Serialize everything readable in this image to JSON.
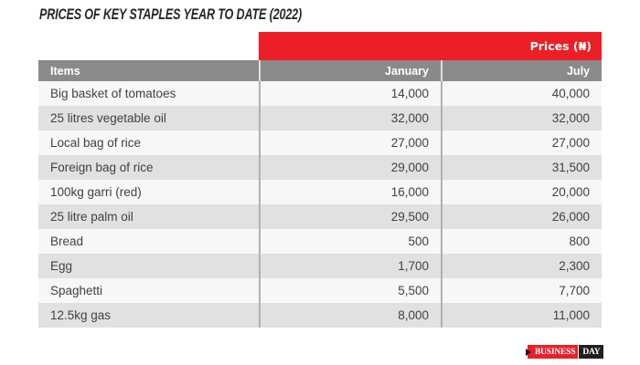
{
  "title": "PRICES OF KEY STAPLES YEAR TO DATE (2022)",
  "table": {
    "price_header": "Prices (₦)",
    "columns": {
      "items": "Items",
      "january": "January",
      "july": "July"
    },
    "rows": [
      {
        "item": "Big basket of tomatoes",
        "january": "14,000",
        "july": "40,000"
      },
      {
        "item": "25 litres vegetable oil",
        "january": "32,000",
        "july": "32,000"
      },
      {
        "item": "Local bag of rice",
        "january": "27,000",
        "july": "27,000"
      },
      {
        "item": "Foreign bag of rice",
        "january": "29,000",
        "july": "31,500"
      },
      {
        "item": "100kg garri (red)",
        "january": "16,000",
        "july": "20,000"
      },
      {
        "item": "25 litre palm oil",
        "january": "29,500",
        "july": "26,000"
      },
      {
        "item": "Bread",
        "january": "500",
        "july": "800"
      },
      {
        "item": "Egg",
        "january": "1,700",
        "july": "2,300"
      },
      {
        "item": "Spaghetti",
        "january": "5,500",
        "july": "7,700"
      },
      {
        "item": "12.5kg gas",
        "january": "8,000",
        "july": "11,000"
      }
    ]
  },
  "logo": {
    "first": "BUSINESS",
    "second": "DAY"
  },
  "colors": {
    "accent_red": "#ec1f27",
    "header_gray": "#8a8a8a",
    "row_light": "#f7f7f7",
    "row_dark": "#e1e1e2",
    "separator_gray": "#b1b1b1",
    "text_dark": "#414042",
    "logo_black": "#231f20"
  }
}
